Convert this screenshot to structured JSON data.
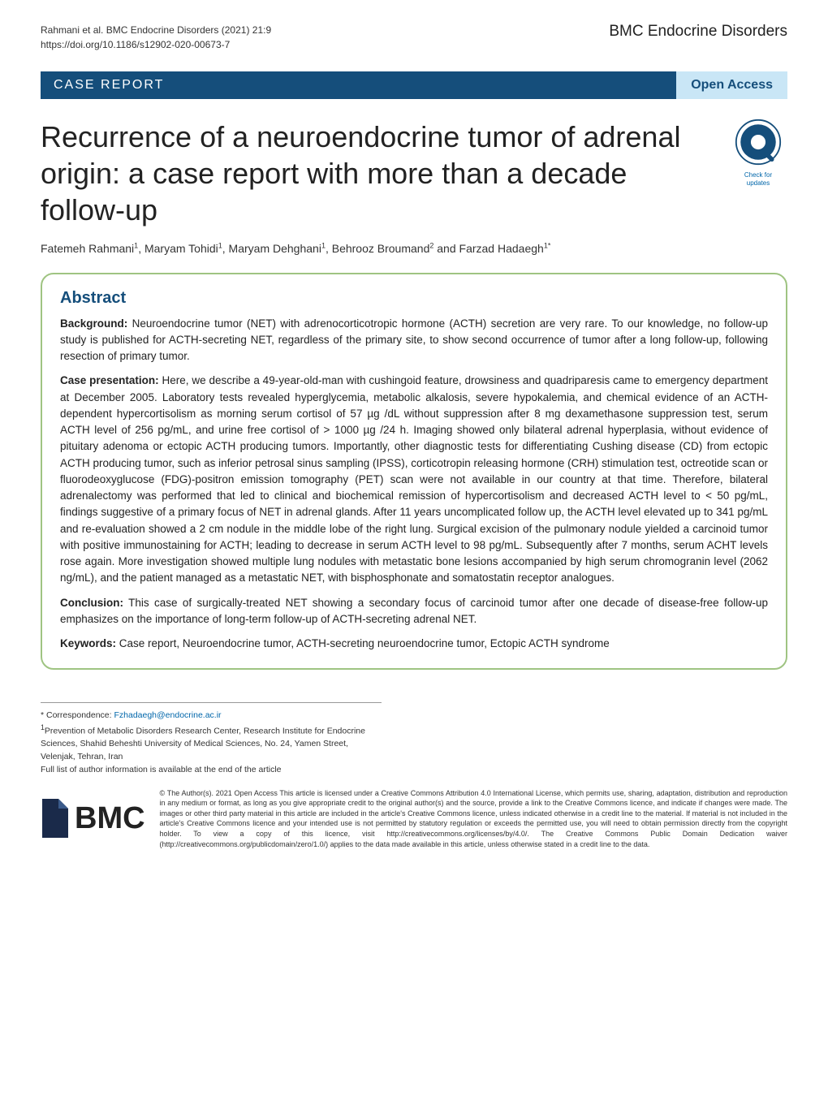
{
  "header": {
    "citation_line1": "Rahmani et al. BMC Endocrine Disorders          (2021) 21:9",
    "citation_line2": "https://doi.org/10.1186/s12902-020-00673-7",
    "journal_name": "BMC Endocrine Disorders"
  },
  "banner": {
    "article_type": "CASE REPORT",
    "access": "Open Access"
  },
  "title": "Recurrence of a neuroendocrine tumor of adrenal origin: a case report with more than a decade follow-up",
  "check_badge": {
    "line1": "Check for",
    "line2": "updates"
  },
  "authors_html": "Fatemeh Rahmani<sup>1</sup>, Maryam Tohidi<sup>1</sup>, Maryam Dehghani<sup>1</sup>, Behrooz Broumand<sup>2</sup> and Farzad Hadaegh<sup>1*</sup>",
  "abstract": {
    "heading": "Abstract",
    "background_label": "Background:",
    "background_text": " Neuroendocrine tumor (NET) with adrenocorticotropic hormone (ACTH) secretion are very rare. To our knowledge, no follow-up study is published for ACTH-secreting NET, regardless of the primary site, to show second occurrence of tumor after a long follow-up, following resection of primary tumor.",
    "case_label": "Case presentation:",
    "case_text": " Here, we describe a 49-year-old-man with cushingoid feature, drowsiness and quadriparesis came to emergency department at December 2005. Laboratory tests revealed hyperglycemia, metabolic alkalosis, severe hypokalemia, and chemical evidence of an ACTH-dependent hypercortisolism as morning serum cortisol of 57 µg /dL without suppression after 8 mg dexamethasone suppression test, serum ACTH level of 256 pg/mL, and urine free cortisol of > 1000 µg /24 h. Imaging showed only bilateral adrenal hyperplasia, without evidence of pituitary adenoma or ectopic ACTH producing tumors. Importantly, other diagnostic tests for differentiating Cushing disease (CD) from ectopic ACTH producing tumor, such as inferior petrosal sinus sampling (IPSS), corticotropin releasing hormone (CRH) stimulation test, octreotide scan or fluorodeoxyglucose (FDG)-positron emission tomography (PET) scan were not available in our country at that time. Therefore, bilateral adrenalectomy was performed that led to clinical and biochemical remission of hypercortisolism and decreased ACTH level to < 50 pg/mL, findings suggestive of a primary focus of NET in adrenal glands. After 11 years uncomplicated follow up, the ACTH level elevated up to 341 pg/mL and re-evaluation showed a 2 cm nodule in the middle lobe of the right lung. Surgical excision of the pulmonary nodule yielded a carcinoid tumor with positive immunostaining for ACTH; leading to decrease in serum ACTH level to 98 pg/mL. Subsequently after 7 months, serum ACHT levels rose again. More investigation showed multiple lung nodules with metastatic bone lesions accompanied by high serum chromogranin level (2062 ng/mL), and the patient managed as a metastatic NET, with bisphosphonate and somatostatin receptor analogues.",
    "conclusion_label": "Conclusion:",
    "conclusion_text": " This case of surgically-treated NET showing a secondary focus of carcinoid tumor after one decade of disease-free follow-up emphasizes on the importance of long-term follow-up of ACTH-secreting adrenal NET.",
    "keywords_label": "Keywords:",
    "keywords_text": " Case report, Neuroendocrine tumor, ACTH-secreting neuroendocrine tumor, Ectopic ACTH syndrome"
  },
  "correspondence": {
    "label": "* Correspondence: ",
    "email": "Fzhadaegh@endocrine.ac.ir",
    "affil1": "Prevention of Metabolic Disorders Research Center, Research Institute for Endocrine Sciences, Shahid Beheshti University of Medical Sciences, No. 24, Yamen Street, Velenjak, Tehran, Iran",
    "affil_note": "Full list of author information is available at the end of the article"
  },
  "bmc": {
    "text": "BMC"
  },
  "license": "© The Author(s). 2021 Open Access This article is licensed under a Creative Commons Attribution 4.0 International License, which permits use, sharing, adaptation, distribution and reproduction in any medium or format, as long as you give appropriate credit to the original author(s) and the source, provide a link to the Creative Commons licence, and indicate if changes were made. The images or other third party material in this article are included in the article's Creative Commons licence, unless indicated otherwise in a credit line to the material. If material is not included in the article's Creative Commons licence and your intended use is not permitted by statutory regulation or exceeds the permitted use, you will need to obtain permission directly from the copyright holder. To view a copy of this licence, visit http://creativecommons.org/licenses/by/4.0/. The Creative Commons Public Domain Dedication waiver (http://creativecommons.org/publicdomain/zero/1.0/) applies to the data made available in this article, unless otherwise stated in a credit line to the data.",
  "colors": {
    "banner_bg": "#154e7b",
    "banner_right_bg": "#c9e6f6",
    "abstract_border": "#9fc482",
    "link": "#0066aa"
  }
}
